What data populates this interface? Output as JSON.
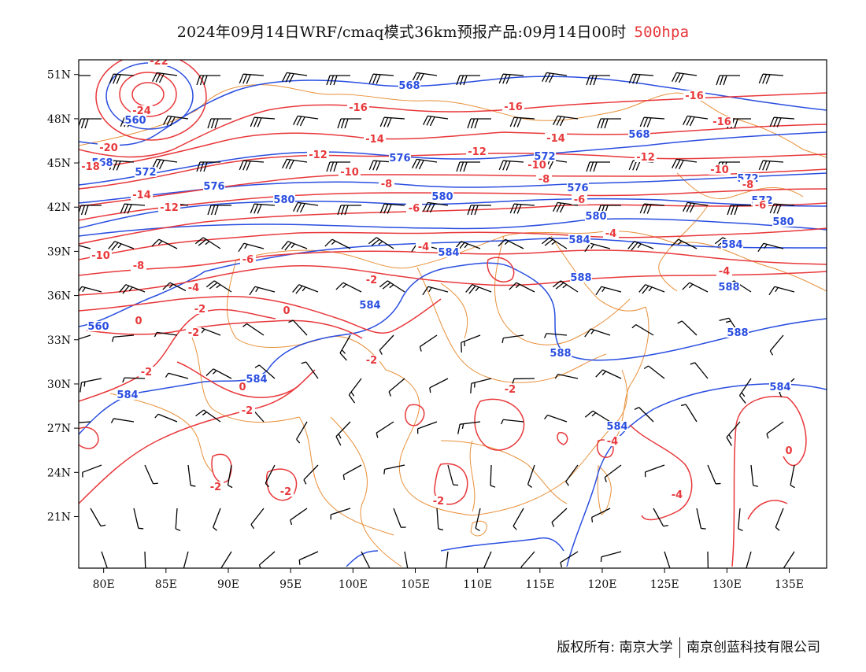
{
  "title": {
    "main": "2024年09月14日WRF/cmaq模式36km预报产品:09月14日00时",
    "level": "500hpa"
  },
  "map": {
    "lat_ticks": [
      "51N",
      "48N",
      "45N",
      "42N",
      "39N",
      "36N",
      "33N",
      "30N",
      "27N",
      "24N",
      "21N"
    ],
    "lon_ticks": [
      "80E",
      "85E",
      "90E",
      "95E",
      "100E",
      "105E",
      "110E",
      "115E",
      "120E",
      "125E",
      "130E",
      "135E"
    ],
    "lon_range": [
      78,
      138
    ],
    "lat_range": [
      17.5,
      52
    ],
    "colors": {
      "geopotential": "#2a4ee0",
      "temperature": "#e8383b",
      "boundary": "#e8903a",
      "wind": "#000000"
    },
    "height_labels": [
      "560",
      "568",
      "572",
      "576",
      "580",
      "584",
      "588"
    ],
    "temperature_labels": [
      "-24",
      "-22",
      "-20",
      "-18",
      "-16",
      "-14",
      "-12",
      "-10",
      "-8",
      "-6",
      "-4",
      "-2",
      "0"
    ]
  },
  "credit": {
    "left": "版权所有: 南京大学",
    "right": "南京创蓝科技有限公司"
  }
}
